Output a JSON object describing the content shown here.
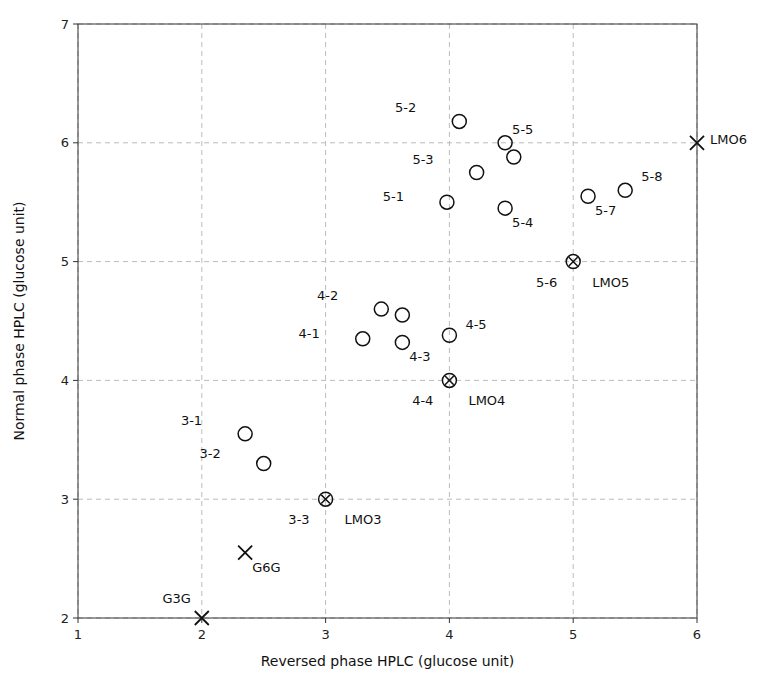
{
  "chart_data": {
    "type": "scatter",
    "xlabel": "Reversed phase HPLC (glucose unit)",
    "ylabel": "Normal phase HPLC (glucose unit)",
    "xlim": [
      1,
      6
    ],
    "ylim": [
      2,
      7
    ],
    "xticks": [
      1,
      2,
      3,
      4,
      5,
      6
    ],
    "yticks": [
      2,
      3,
      4,
      5,
      6,
      7
    ],
    "grid": true,
    "series": [
      {
        "marker": "circle",
        "x": [
          4.08,
          4.45,
          4.22,
          4.52,
          3.98,
          4.45,
          5.12,
          5.42,
          3.45,
          3.62,
          3.3,
          3.62,
          4.0,
          2.35,
          2.5
        ],
        "values": [
          6.18,
          6.0,
          5.75,
          5.88,
          5.5,
          5.45,
          5.55,
          5.6,
          4.6,
          4.55,
          4.35,
          4.32,
          4.38,
          3.55,
          3.3
        ],
        "labels": [
          "5-2",
          "5-5",
          "5-3",
          null,
          "5-1",
          "5-4",
          "5-7",
          "5-8",
          "4-2",
          null,
          "4-1",
          "4-3",
          "4-5",
          "3-1",
          "3-2"
        ]
      },
      {
        "marker": "circle-x",
        "x": [
          3.0,
          4.0,
          5.0
        ],
        "values": [
          3.0,
          4.0,
          5.0
        ],
        "labels": [
          "3-3",
          "4-4",
          "5-6"
        ],
        "labels_right": [
          "LMO3",
          "LMO4",
          "LMO5"
        ]
      },
      {
        "marker": "x",
        "x": [
          2.0,
          2.35,
          6.0
        ],
        "values": [
          2.0,
          2.55,
          6.0
        ],
        "labels": [
          "G3G",
          "G6G",
          "LMO6"
        ]
      }
    ]
  }
}
